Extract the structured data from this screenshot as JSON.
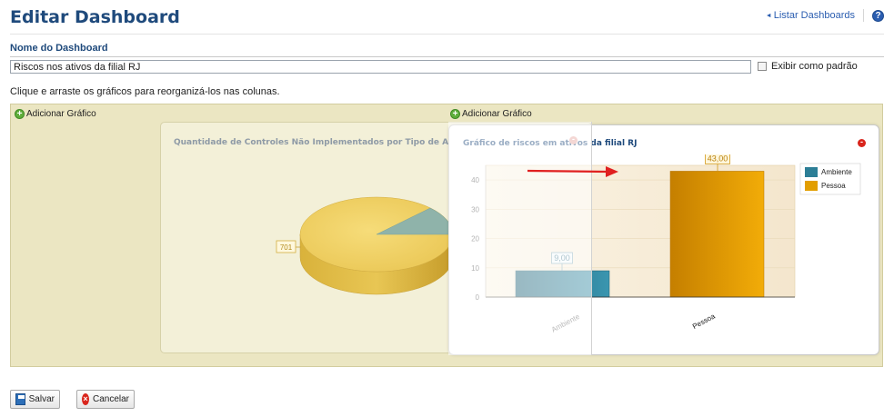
{
  "header": {
    "title": "Editar Dashboard",
    "list_link": "Listar Dashboards",
    "help_icon": "question-icon"
  },
  "form": {
    "name_label": "Nome do Dashboard",
    "name_value": "Riscos nos ativos da filial RJ",
    "default_checkbox_label": "Exibir como padrão",
    "default_checked": false,
    "instructions": "Clique e arraste os gráficos para reorganizá-los nas colunas."
  },
  "board": {
    "columns": [
      {
        "add_label": "Adicionar Gráfico"
      },
      {
        "add_label": "Adicionar Gráfico"
      }
    ]
  },
  "charts": {
    "pie": {
      "title": "Quantidade de Controles Não Implementados por Tipo de Ativo",
      "label_large": "701",
      "label_small": "79"
    },
    "bar": {
      "title": "Gráfico de riscos em ativos da filial RJ",
      "data_labels": [
        "9,00",
        "43,00"
      ],
      "y_ticks": [
        "0",
        "10",
        "20",
        "30",
        "40"
      ],
      "categories": [
        "Ambiente",
        "Pessoa"
      ],
      "legend": [
        "Ambiente",
        "Pessoa"
      ]
    }
  },
  "chart_data": [
    {
      "type": "pie",
      "title": "Quantidade de Controles Não Implementados por Tipo de Ativo",
      "slices": [
        {
          "value": 701,
          "color": "#efcf5f"
        },
        {
          "value": 79,
          "color": "#8fb3aa"
        }
      ]
    },
    {
      "type": "bar",
      "title": "Gráfico de riscos em ativos da filial RJ",
      "categories": [
        "Ambiente",
        "Pessoa"
      ],
      "series": [
        {
          "name": "Ambiente",
          "values": [
            9,
            null
          ],
          "color": "#2c7e96"
        },
        {
          "name": "Pessoa",
          "values": [
            null,
            43
          ],
          "color": "#e29e00"
        }
      ],
      "ylim": [
        0,
        45
      ],
      "legend": "right",
      "grid": true
    }
  ],
  "buttons": {
    "save": "Salvar",
    "cancel": "Cancelar"
  },
  "colors": {
    "title": "#1f4a7c",
    "board_bg": "#ebe6c2",
    "remove": "#d9251c",
    "annotation_arrow": "#e02020"
  }
}
